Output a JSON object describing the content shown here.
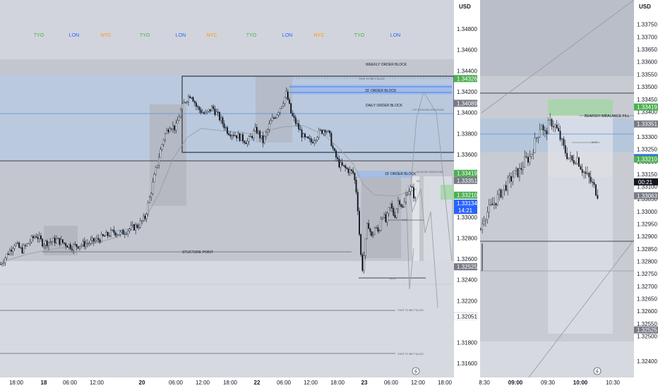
{
  "chart_data": [
    {
      "type": "candlestick",
      "title": "",
      "currency": "USD",
      "x_ticks": [
        {
          "label": "18:00",
          "bold": false
        },
        {
          "label": "18",
          "bold": true
        },
        {
          "label": "06:00",
          "bold": false
        },
        {
          "label": "12:00",
          "bold": false
        },
        {
          "label": "20",
          "bold": true
        },
        {
          "label": "06:00",
          "bold": false
        },
        {
          "label": "12:00",
          "bold": false
        },
        {
          "label": "18:00",
          "bold": false
        },
        {
          "label": "22",
          "bold": true
        },
        {
          "label": "06:00",
          "bold": false
        },
        {
          "label": "12:00",
          "bold": false
        },
        {
          "label": "18:00",
          "bold": false
        },
        {
          "label": "23",
          "bold": true
        },
        {
          "label": "06:00",
          "bold": false
        },
        {
          "label": "12:00",
          "bold": false
        },
        {
          "label": "18:00",
          "bold": false
        }
      ],
      "y_ticks": [
        1.316,
        1.318,
        1.322,
        1.324,
        1.326,
        1.328,
        1.33,
        1.332,
        1.334,
        1.336,
        1.338,
        1.34,
        1.342,
        1.344,
        1.346,
        1.348
      ],
      "ylim": [
        1.3148,
        1.3501
      ],
      "price_labels": [
        {
          "value": 1.34326,
          "text": "1.34326",
          "color": "#4caf50"
        },
        {
          "value": 1.34089,
          "text": "1.34089",
          "color": "#787b86"
        },
        {
          "value": 1.33419,
          "text": "1.33419",
          "color": "#4caf50"
        },
        {
          "value": 1.33351,
          "text": "1.33351",
          "color": "#787b86"
        },
        {
          "value": 1.3321,
          "text": "1.33210",
          "color": "#4caf50"
        },
        {
          "value": 1.33134,
          "text": "1.33134",
          "color": "#2962ff"
        },
        {
          "value": 1.33063,
          "text": "1.33063",
          "color": "#787b86"
        },
        {
          "value": 1.32525,
          "text": "1.32525",
          "color": "#787b86"
        },
        {
          "value": 1.32056,
          "text": "1.32056",
          "color": "#ffffff"
        },
        {
          "value": 1.32051,
          "text": "1.32051",
          "color": "#ffffff"
        }
      ],
      "countdown": "14:21",
      "sessions": [
        {
          "label": "TYO",
          "color": "#4caf50"
        },
        {
          "label": "LON",
          "color": "#2962ff"
        },
        {
          "label": "NYC",
          "color": "#ff9800"
        },
        {
          "label": "TYO",
          "color": "#4caf50"
        },
        {
          "label": "LON",
          "color": "#2962ff"
        },
        {
          "label": "NYC",
          "color": "#ff9800"
        },
        {
          "label": "TYO",
          "color": "#4caf50"
        },
        {
          "label": "LON",
          "color": "#2962ff"
        },
        {
          "label": "NYC",
          "color": "#ff9800"
        },
        {
          "label": "TYO",
          "color": "#4caf50"
        },
        {
          "label": "LON",
          "color": "#2962ff"
        }
      ],
      "annotations": {
        "weekly": "WEEKLY ORDER BLOCK",
        "to_be_filled": "THIS TO BE FILLED",
        "ob15": "15' ORDER BLOCK",
        "daily": "DAILY ORDER BLOCK",
        "ltf": "LTF BOS/OB CREATION",
        "ob15b": "15' ORDER BLOCK",
        "bosob": "BOS/OB CREATION",
        "ol": "OL",
        "bos": "BOS",
        "structure": "STUCTURE POINT",
        "bos2": "BOS",
        "tbf2": "THIS TO BE FILLED",
        "tbf3": "THIS TO BE FILLED"
      },
      "path": [
        [
          0,
          1.3255
        ],
        [
          20,
          1.3275
        ],
        [
          30,
          1.3268
        ],
        [
          50,
          1.3283
        ],
        [
          60,
          1.3275
        ],
        [
          80,
          1.3278
        ],
        [
          100,
          1.3272
        ],
        [
          110,
          1.3273
        ],
        [
          128,
          1.3276
        ],
        [
          140,
          1.3279
        ],
        [
          160,
          1.3286
        ],
        [
          170,
          1.3284
        ],
        [
          180,
          1.3288
        ],
        [
          195,
          1.3292
        ],
        [
          205,
          1.33
        ],
        [
          215,
          1.333
        ],
        [
          225,
          1.336
        ],
        [
          232,
          1.3378
        ],
        [
          240,
          1.3388
        ],
        [
          248,
          1.3385
        ],
        [
          255,
          1.3402
        ],
        [
          262,
          1.3412
        ],
        [
          270,
          1.3418
        ],
        [
          278,
          1.3405
        ],
        [
          290,
          1.3398
        ],
        [
          300,
          1.3405
        ],
        [
          310,
          1.3395
        ],
        [
          322,
          1.3382
        ],
        [
          335,
          1.3378
        ],
        [
          350,
          1.3372
        ],
        [
          362,
          1.3384
        ],
        [
          372,
          1.3372
        ],
        [
          382,
          1.339
        ],
        [
          392,
          1.34
        ],
        [
          398,
          1.3408
        ],
        [
          405,
          1.3418
        ],
        [
          412,
          1.3398
        ],
        [
          420,
          1.3388
        ],
        [
          430,
          1.3375
        ],
        [
          440,
          1.3372
        ],
        [
          450,
          1.338
        ],
        [
          460,
          1.3385
        ],
        [
          466,
          1.3378
        ],
        [
          472,
          1.3362
        ],
        [
          480,
          1.335
        ],
        [
          490,
          1.3346
        ],
        [
          500,
          1.3342
        ],
        [
          505,
          1.332
        ],
        [
          508,
          1.3286
        ],
        [
          512,
          1.3248
        ],
        [
          516,
          1.327
        ],
        [
          520,
          1.3296
        ],
        [
          526,
          1.328
        ],
        [
          530,
          1.329
        ],
        [
          536,
          1.3285
        ],
        [
          540,
          1.3305
        ],
        [
          546,
          1.3295
        ],
        [
          552,
          1.3312
        ],
        [
          558,
          1.33
        ],
        [
          564,
          1.3318
        ],
        [
          570,
          1.3308
        ],
        [
          576,
          1.3325
        ],
        [
          582,
          1.3328
        ],
        [
          588,
          1.3315
        ]
      ],
      "panels": [
        {
          "type": "candlestick",
          "x_ticks": [
            {
              "label": "8:30",
              "bold": false
            },
            {
              "label": "09:00",
              "bold": true
            },
            {
              "label": "09:30",
              "bold": false
            },
            {
              "label": "10:00",
              "bold": true
            },
            {
              "label": "10:30",
              "bold": false
            }
          ],
          "y_ticks": [
            1.324,
            1.325,
            1.3255,
            1.326,
            1.3265,
            1.327,
            1.3275,
            1.328,
            1.3285,
            1.329,
            1.3295,
            1.33,
            1.3305,
            1.331,
            1.3315,
            1.332,
            1.3325,
            1.333,
            1.3335,
            1.334,
            1.3345,
            1.335,
            1.3355,
            1.336,
            1.3365,
            1.337,
            1.3375
          ],
          "ylim": [
            1.3234,
            1.3382
          ],
          "price_labels": [
            {
              "value": 1.33419,
              "text": "1.33419",
              "color": "#4caf50"
            },
            {
              "value": 1.33351,
              "text": "1.33351",
              "color": "#787b86"
            },
            {
              "value": 1.33216,
              "text": "1.33216",
              "color": "#2962ff"
            },
            {
              "value": 1.3321,
              "text": "1.33210",
              "color": "#4caf50"
            },
            {
              "value": 1.33063,
              "text": "1.33063",
              "color": "#787b86"
            },
            {
              "value": 1.32525,
              "text": "1.32525",
              "color": "#787b86"
            }
          ],
          "countdown": "00:21",
          "annotations": {
            "bearish": "BEARISH IMBALANCE FILL",
            "bos": "BOS"
          },
          "path": [
            [
              680,
              1.3293
            ],
            [
              685,
              1.3298
            ],
            [
              690,
              1.33
            ],
            [
              698,
              1.3303
            ],
            [
              705,
              1.3306
            ],
            [
              712,
              1.3309
            ],
            [
              720,
              1.3312
            ],
            [
              728,
              1.3315
            ],
            [
              735,
              1.3316
            ],
            [
              742,
              1.332
            ],
            [
              750,
              1.3322
            ],
            [
              756,
              1.3327
            ],
            [
              762,
              1.3332
            ],
            [
              766,
              1.3336
            ],
            [
              770,
              1.333
            ],
            [
              775,
              1.3334
            ],
            [
              780,
              1.3336
            ],
            [
              786,
              1.3334
            ],
            [
              792,
              1.333
            ],
            [
              798,
              1.3325
            ],
            [
              804,
              1.3322
            ],
            [
              810,
              1.332
            ],
            [
              816,
              1.3322
            ],
            [
              822,
              1.3318
            ],
            [
              828,
              1.3315
            ],
            [
              834,
              1.3313
            ],
            [
              840,
              1.331
            ],
            [
              846,
              1.3307
            ]
          ]
        }
      ]
    }
  ]
}
